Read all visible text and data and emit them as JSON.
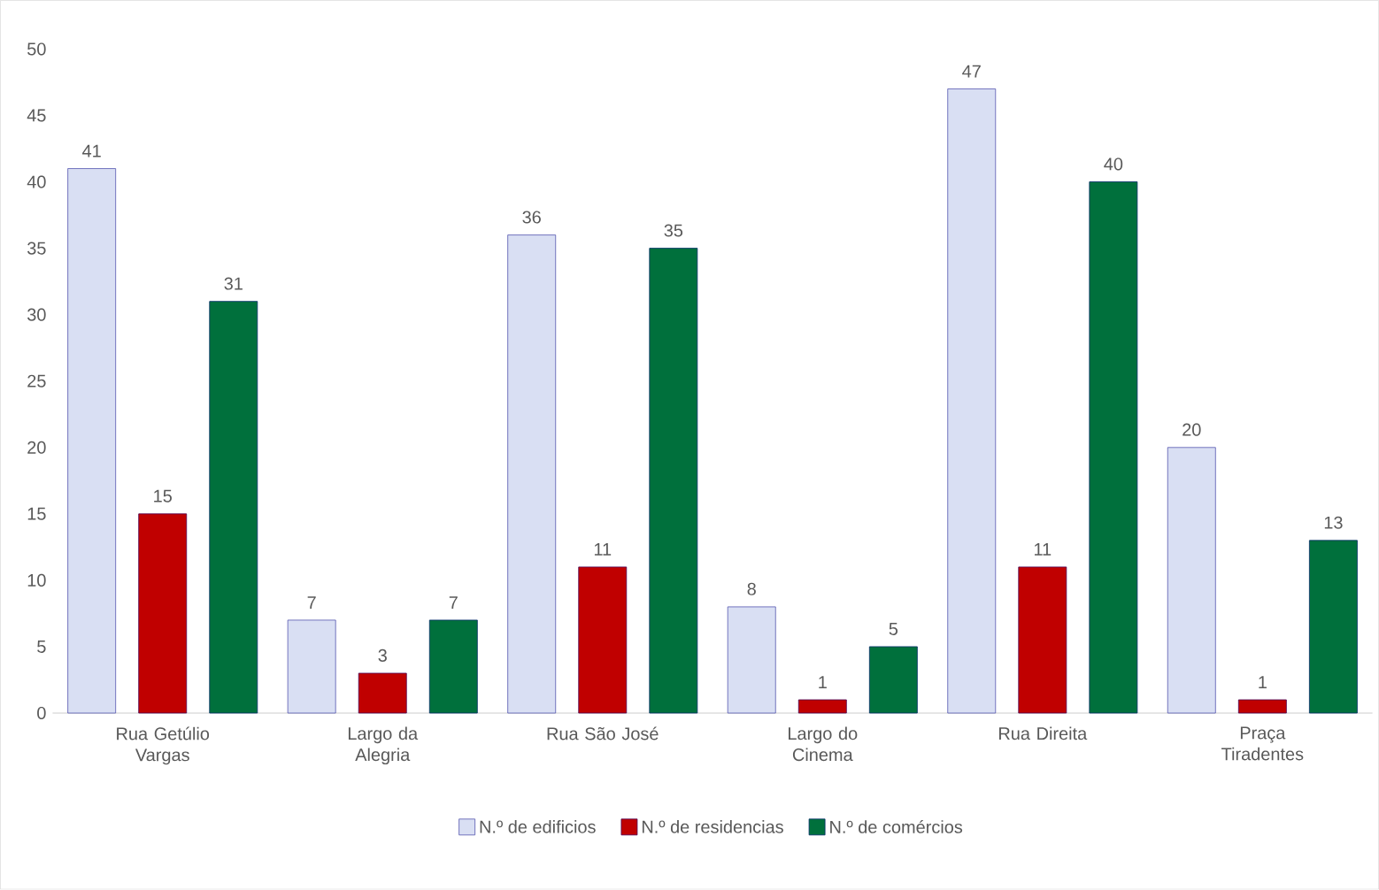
{
  "chart_data": {
    "type": "bar",
    "categories": [
      "Rua Getúlio Vargas",
      "Largo da Alegria",
      "Rua São José",
      "Largo do Cinema",
      "Rua Direita",
      "Praça Tiradentes"
    ],
    "series": [
      {
        "name": "N.º de edificios",
        "color": "#d9dff3",
        "values": [
          41,
          7,
          36,
          8,
          47,
          20
        ]
      },
      {
        "name": "N.º de residencias",
        "color": "#c00000",
        "values": [
          15,
          3,
          11,
          1,
          11,
          1
        ]
      },
      {
        "name": "N.º de comércios",
        "color": "#00703c",
        "values": [
          31,
          7,
          35,
          5,
          40,
          13
        ]
      }
    ],
    "ylim": [
      0,
      50
    ],
    "yticks": [
      0,
      5,
      10,
      15,
      20,
      25,
      30,
      35,
      40,
      45,
      50
    ],
    "legend": "bottom",
    "data_labels": true
  }
}
